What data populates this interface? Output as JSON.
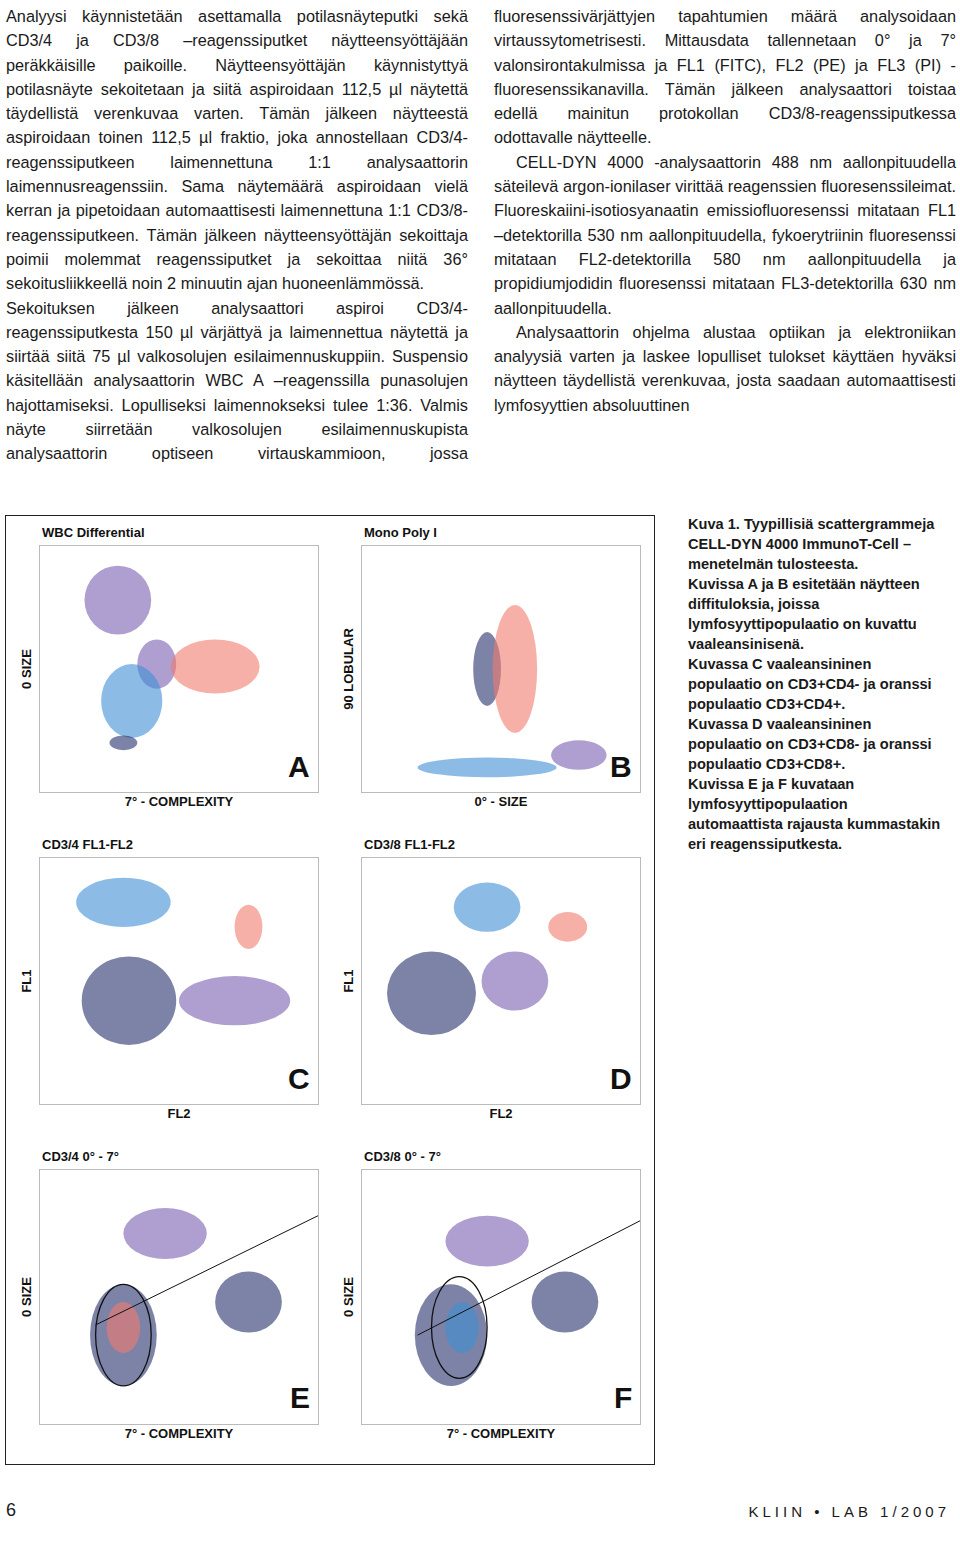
{
  "page": {
    "paragraphs": [
      "Analyysi käynnistetään asettamalla potilasnäyteputki sekä CD3/4 ja CD3/8 –reagenssiputket näytteensyöttäjään peräkkäisille paikoille. Näytteensyöttäjän käynnistyttyä potilasnäyte sekoitetaan ja siitä aspiroidaan 112,5 µl näytettä täydellistä verenkuvaa varten. Tämän jälkeen näytteestä aspiroidaan toinen 112,5 µl fraktio, joka annostellaan CD3/4-reagenssiputkeen laimennettuna 1:1 analysaattorin laimennusreagenssiin. Sama näytemäärä aspiroidaan vielä kerran ja pipetoidaan automaattisesti laimennettuna 1:1 CD3/8-reagenssiputkeen. Tämän jälkeen näytteensyöttäjän sekoittaja poimii molemmat reagenssiputket ja sekoittaa niitä 36° sekoitusliikkeellä noin 2 minuutin ajan huoneenlämmössä.",
      "Sekoituksen jälkeen analysaattori aspiroi CD3/4-reagenssiputkesta 150 µl värjättyä ja laimennettua näytettä ja siirtää siitä 75 µl valkosolujen esilaimennuskuppiin. Suspensio käsitellään analysaattorin WBC A –reagenssilla punasolujen hajottamiseksi. Lopulliseksi laimennokseksi tulee 1:36. Valmis näyte siirretään valkosolujen esilaimennuskupista analysaattorin optiseen virtauskammioon, jossa fluoresenssivärjättyjen tapahtumien määrä analysoidaan virtaussytometrisesti. Mittausdata tallennetaan 0° ja 7° valonsirontakulmissa ja FL1 (FITC), FL2 (PE) ja FL3 (PI) -fluoresenssikanavilla. Tämän jälkeen analysaattori toistaa edellä mainitun protokollan CD3/8-reagenssiputkessa odottavalle näytteelle.",
      "CELL-DYN 4000 -analysaattorin 488 nm aallonpituudella säteilevä argon-ionilaser virittää reagenssien fluoresenssileimat. Fluoreskaiini-isotiosyanaatin emissiofluoresenssi mitataan FL1 –detektorilla 530 nm aallonpituudella, fykoerytriinin fluoresenssi mitataan FL2-detektorilla 580 nm aallonpituudella ja propidiumjodidin fluoresenssi mitataan FL3-detektorilla 630 nm aallonpituudella.",
      "Analysaattorin ohjelma alustaa optiikan ja elektroniikan analyysiä varten ja laskee lopulliset tulokset käyttäen hyväksi näytteen täydellistä verenkuvaa, josta saadaan automaattisesti lymfosyyttien absoluuttinen"
    ],
    "caption": [
      "Kuva 1. Tyypillisiä scattergrammeja CELL-DYN 4000 ImmunoT-Cell –menetelmän tulosteesta.",
      "Kuvissa A ja B esitetään näytteen diffituloksia, joissa lymfosyyttipopulaatio on kuvattu vaaleansinisenä.",
      "Kuvassa C vaaleansininen populaatio on CD3+CD4- ja oranssi populaatio CD3+CD4+.",
      "Kuvassa D vaaleansininen populaatio on CD3+CD8- ja oranssi populaatio CD3+CD8+.",
      "Kuvissa E ja F kuvataan lymfosyyttipopulaation automaattista rajausta kummastakin eri reagenssiputkesta."
    ],
    "footer": {
      "page_number": "6",
      "journal": "KLIIN • LAB",
      "issue": "1/2007"
    }
  },
  "chart_data": [
    {
      "type": "scatter",
      "panel": "A",
      "title": "WBC Differential",
      "x_label": "7° - COMPLEXITY",
      "y_label": "0 SIZE",
      "xlim": [
        0,
        100
      ],
      "ylim": [
        0,
        100
      ],
      "xticks": [],
      "yticks": [],
      "tick_labels": false,
      "clusters": [
        {
          "color": "#7a5fb0",
          "x": 28,
          "y": 78,
          "sx": 12,
          "sy": 14
        },
        {
          "color": "#7a5fb0",
          "x": 42,
          "y": 52,
          "sx": 7,
          "sy": 10
        },
        {
          "color": "#f07b6e",
          "x": 63,
          "y": 51,
          "sx": 16,
          "sy": 11
        },
        {
          "color": "#3f8fd6",
          "x": 33,
          "y": 37,
          "sx": 11,
          "sy": 15
        },
        {
          "color": "#27306b",
          "x": 30,
          "y": 20,
          "sx": 5,
          "sy": 3
        }
      ]
    },
    {
      "type": "scatter",
      "panel": "B",
      "title": "Mono Poly I",
      "x_label": "0° - SIZE",
      "y_label": "90 LOBULAR",
      "xlim": [
        0,
        100
      ],
      "ylim": [
        0,
        100
      ],
      "xticks": [],
      "yticks": [],
      "tick_labels": false,
      "clusters": [
        {
          "color": "#27306b",
          "x": 45,
          "y": 50,
          "sx": 5,
          "sy": 15
        },
        {
          "color": "#f07b6e",
          "x": 55,
          "y": 50,
          "sx": 8,
          "sy": 26
        },
        {
          "color": "#3f8fd6",
          "x": 45,
          "y": 10,
          "sx": 25,
          "sy": 4
        },
        {
          "color": "#7a5fb0",
          "x": 78,
          "y": 15,
          "sx": 10,
          "sy": 6
        }
      ]
    },
    {
      "type": "scatter",
      "panel": "C",
      "title": "CD3/4 FL1-FL2",
      "x_label": "FL2",
      "y_label": "FL1",
      "xlim": [
        0,
        100
      ],
      "ylim": [
        0,
        100
      ],
      "xticks": [],
      "yticks": [],
      "tick_labels": false,
      "clusters": [
        {
          "color": "#3f8fd6",
          "x": 30,
          "y": 82,
          "sx": 17,
          "sy": 10
        },
        {
          "color": "#f07b6e",
          "x": 75,
          "y": 72,
          "sx": 5,
          "sy": 9
        },
        {
          "color": "#7a5fb0",
          "x": 70,
          "y": 42,
          "sx": 20,
          "sy": 10
        },
        {
          "color": "#27306b",
          "x": 32,
          "y": 42,
          "sx": 17,
          "sy": 18
        }
      ]
    },
    {
      "type": "scatter",
      "panel": "D",
      "title": "CD3/8 FL1-FL2",
      "x_label": "FL2",
      "y_label": "FL1",
      "xlim": [
        0,
        100
      ],
      "ylim": [
        0,
        100
      ],
      "xticks": [],
      "yticks": [],
      "tick_labels": false,
      "clusters": [
        {
          "color": "#3f8fd6",
          "x": 45,
          "y": 80,
          "sx": 12,
          "sy": 10
        },
        {
          "color": "#f07b6e",
          "x": 74,
          "y": 72,
          "sx": 7,
          "sy": 6
        },
        {
          "color": "#7a5fb0",
          "x": 55,
          "y": 50,
          "sx": 12,
          "sy": 12
        },
        {
          "color": "#27306b",
          "x": 25,
          "y": 45,
          "sx": 16,
          "sy": 17
        }
      ]
    },
    {
      "type": "scatter",
      "panel": "E",
      "title": "CD3/4 0° - 7°",
      "x_label": "7° - COMPLEXITY",
      "y_label": "0 SIZE",
      "xlim": [
        0,
        100
      ],
      "ylim": [
        0,
        100
      ],
      "xticks": [],
      "yticks": [],
      "tick_labels": false,
      "clusters": [
        {
          "color": "#7a5fb0",
          "x": 45,
          "y": 75,
          "sx": 15,
          "sy": 10
        },
        {
          "color": "#27306b",
          "x": 75,
          "y": 48,
          "sx": 12,
          "sy": 12
        },
        {
          "color": "#27306b",
          "x": 30,
          "y": 35,
          "sx": 12,
          "sy": 20
        },
        {
          "color": "#f07b6e",
          "x": 30,
          "y": 38,
          "sx": 6,
          "sy": 10
        }
      ],
      "gate": {
        "cx": 30,
        "cy": 35,
        "rx": 10,
        "ry": 20
      },
      "gate_line": {
        "x0": 20,
        "y0": 39,
        "x1": 100,
        "y1": 82
      }
    },
    {
      "type": "scatter",
      "panel": "F",
      "title": "CD3/8 0° - 7°",
      "x_label": "7° - COMPLEXITY",
      "y_label": "0 SIZE",
      "xlim": [
        0,
        100
      ],
      "ylim": [
        0,
        100
      ],
      "xticks": [],
      "yticks": [],
      "tick_labels": false,
      "clusters": [
        {
          "color": "#7a5fb0",
          "x": 45,
          "y": 72,
          "sx": 15,
          "sy": 10
        },
        {
          "color": "#27306b",
          "x": 73,
          "y": 48,
          "sx": 12,
          "sy": 12
        },
        {
          "color": "#27306b",
          "x": 32,
          "y": 35,
          "sx": 13,
          "sy": 20
        },
        {
          "color": "#3f8fd6",
          "x": 36,
          "y": 38,
          "sx": 6,
          "sy": 10
        }
      ],
      "gate": {
        "cx": 35,
        "cy": 38,
        "rx": 10,
        "ry": 20
      },
      "gate_line": {
        "x0": 20,
        "y0": 35,
        "x1": 100,
        "y1": 80
      }
    }
  ]
}
